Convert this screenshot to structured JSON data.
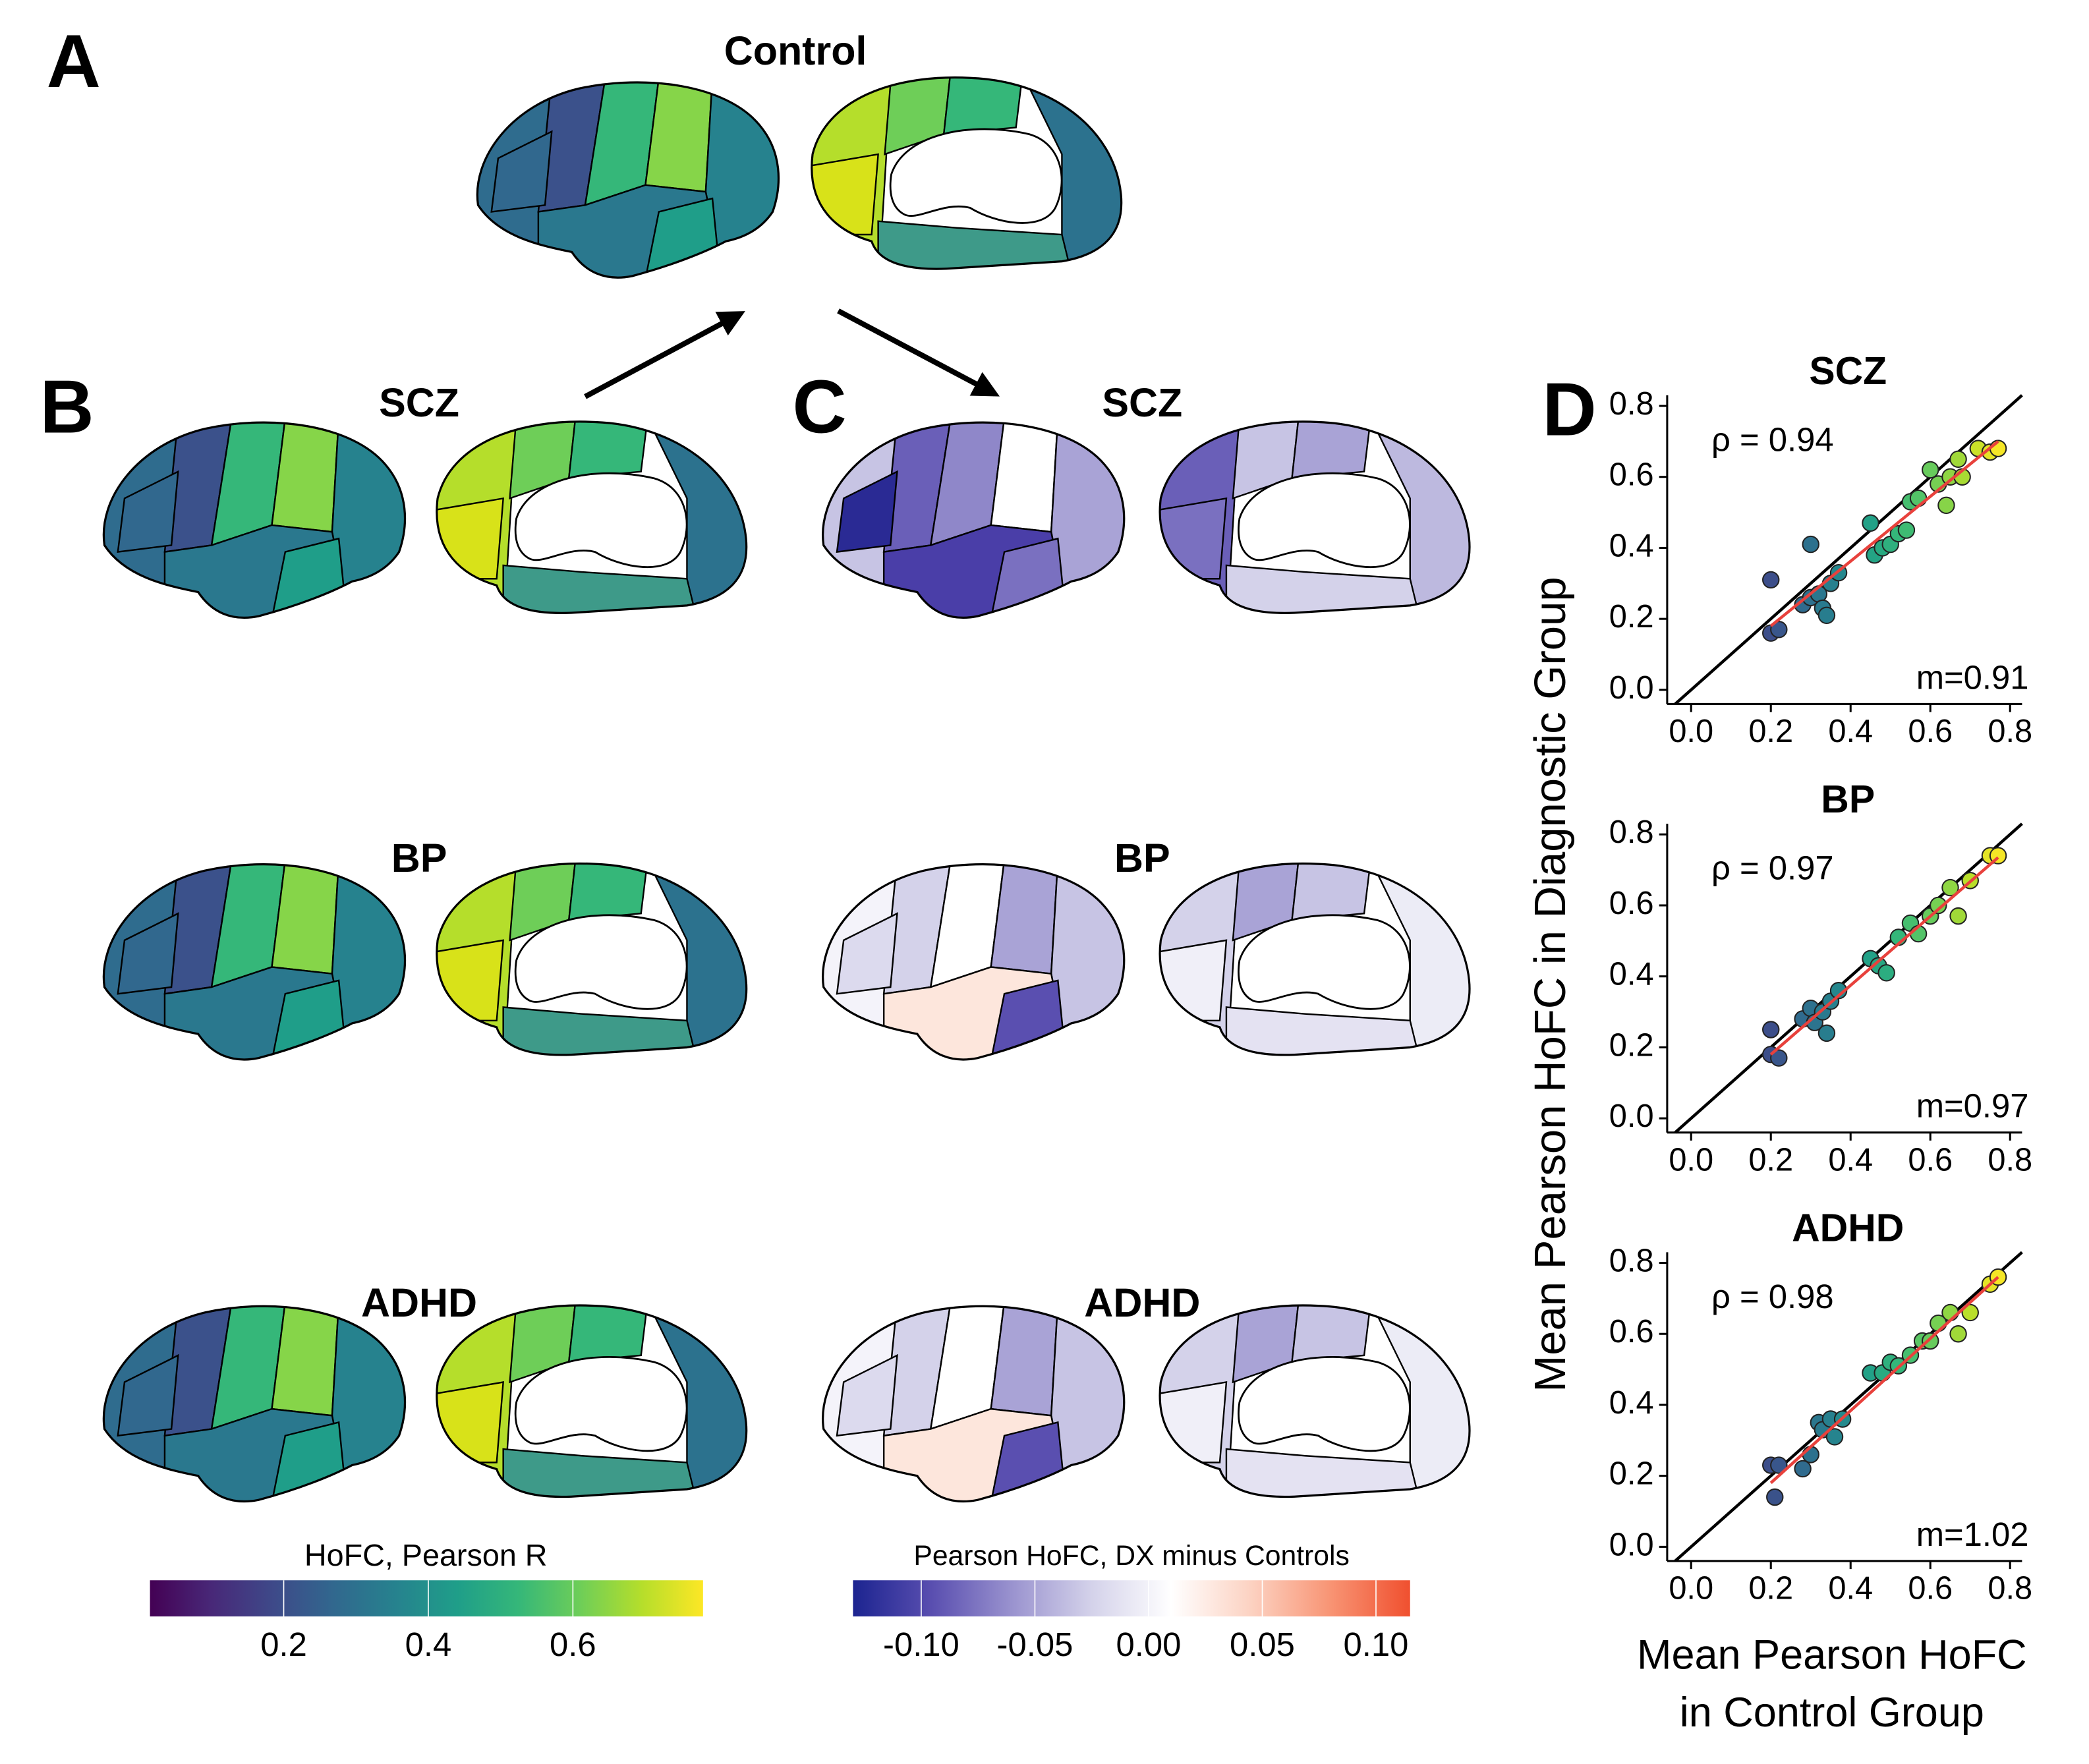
{
  "panels": [
    "A",
    "B",
    "C",
    "D"
  ],
  "brain_titles": {
    "control": "Control",
    "hofc": [
      "SCZ",
      "BP",
      "ADHD"
    ],
    "difference": [
      "SCZ",
      "BP",
      "ADHD"
    ]
  },
  "colorbars": [
    {
      "label": "HoFC, Pearson R",
      "lim": [
        0.015,
        0.78
      ],
      "ticks": [
        0.2,
        0.4,
        0.6
      ],
      "colors": [
        "#440154",
        "#482878",
        "#3e4989",
        "#31688e",
        "#26828e",
        "#1f9e89",
        "#35b779",
        "#6ece58",
        "#b5de2b",
        "#fde725"
      ]
    },
    {
      "label": "Pearson HoFC, DX minus Controls",
      "lim": [
        -0.13,
        0.115
      ],
      "ticks": [
        {
          "value": -0.1,
          "label": "-0.10"
        },
        {
          "value": -0.05,
          "label": "-0.05"
        },
        {
          "value": 0,
          "label": "0.00"
        },
        0.05,
        {
          "value": 0.1,
          "label": "0.10"
        }
      ],
      "colors": [
        "#1c2490",
        "#5a4fb0",
        "#9a93cf",
        "#d4d2ea",
        "#ffffff",
        "#fcd2c2",
        "#f89474",
        "#f0502f"
      ]
    }
  ],
  "shared_axes": {
    "y_label": "Mean Pearson HoFC in Diagnostic Group",
    "x_label": [
      "Mean Pearson HoFC",
      "in Control Group"
    ]
  },
  "chart_data": [
    {
      "type": "scatter",
      "title": "SCZ",
      "annotation": "ρ = 0.94",
      "fit_label": "m=0.91",
      "fit_color": "#e8413c",
      "x": [
        0.2,
        0.2,
        0.22,
        0.28,
        0.3,
        0.3,
        0.32,
        0.33,
        0.34,
        0.35,
        0.37,
        0.45,
        0.46,
        0.48,
        0.5,
        0.52,
        0.54,
        0.55,
        0.57,
        0.6,
        0.62,
        0.64,
        0.65,
        0.67,
        0.68,
        0.72,
        0.75,
        0.77
      ],
      "y": [
        0.31,
        0.16,
        0.17,
        0.24,
        0.41,
        0.26,
        0.27,
        0.23,
        0.21,
        0.3,
        0.33,
        0.47,
        0.38,
        0.4,
        0.41,
        0.44,
        0.45,
        0.53,
        0.54,
        0.62,
        0.58,
        0.52,
        0.6,
        0.65,
        0.6,
        0.68,
        0.67,
        0.68
      ],
      "fit": {
        "x": [
          0.2,
          0.77
        ],
        "y": [
          0.18,
          0.7
        ]
      },
      "xlim": [
        -0.06,
        0.83
      ],
      "ylim": [
        -0.04,
        0.83
      ],
      "xticks": [
        {
          "value": 0,
          "label": "0.0"
        },
        0.2,
        0.4,
        0.6,
        0.8
      ],
      "yticks": [
        {
          "value": 0,
          "label": "0.0"
        },
        0.2,
        0.4,
        0.6,
        0.8
      ]
    },
    {
      "type": "scatter",
      "title": "BP",
      "annotation": "ρ = 0.97",
      "fit_label": "m=0.97",
      "fit_color": "#e8413c",
      "x": [
        0.2,
        0.2,
        0.22,
        0.28,
        0.3,
        0.31,
        0.33,
        0.34,
        0.35,
        0.37,
        0.45,
        0.47,
        0.49,
        0.52,
        0.55,
        0.57,
        0.6,
        0.62,
        0.65,
        0.67,
        0.7,
        0.75,
        0.77
      ],
      "y": [
        0.25,
        0.18,
        0.17,
        0.28,
        0.31,
        0.27,
        0.3,
        0.24,
        0.33,
        0.36,
        0.45,
        0.43,
        0.41,
        0.51,
        0.55,
        0.52,
        0.57,
        0.6,
        0.65,
        0.57,
        0.67,
        0.74,
        0.74
      ],
      "fit": {
        "x": [
          0.2,
          0.77
        ],
        "y": [
          0.18,
          0.735
        ]
      },
      "xlim": [
        -0.06,
        0.83
      ],
      "ylim": [
        -0.04,
        0.83
      ],
      "xticks": [
        {
          "value": 0,
          "label": "0.0"
        },
        0.2,
        0.4,
        0.6,
        0.8
      ],
      "yticks": [
        {
          "value": 0,
          "label": "0.0"
        },
        0.2,
        0.4,
        0.6,
        0.8
      ]
    },
    {
      "type": "scatter",
      "title": "ADHD",
      "annotation": "ρ = 0.98",
      "fit_label": "m=1.02",
      "fit_color": "#e8413c",
      "x": [
        0.2,
        0.21,
        0.22,
        0.28,
        0.3,
        0.32,
        0.33,
        0.35,
        0.36,
        0.38,
        0.45,
        0.48,
        0.5,
        0.52,
        0.55,
        0.58,
        0.6,
        0.62,
        0.65,
        0.67,
        0.7,
        0.75,
        0.77
      ],
      "y": [
        0.23,
        0.14,
        0.23,
        0.22,
        0.26,
        0.35,
        0.33,
        0.36,
        0.31,
        0.36,
        0.49,
        0.49,
        0.52,
        0.51,
        0.54,
        0.58,
        0.58,
        0.63,
        0.66,
        0.6,
        0.66,
        0.74,
        0.76
      ],
      "fit": {
        "x": [
          0.2,
          0.77
        ],
        "y": [
          0.18,
          0.76
        ]
      },
      "xlim": [
        -0.06,
        0.83
      ],
      "ylim": [
        -0.04,
        0.83
      ],
      "xticks": [
        {
          "value": 0,
          "label": "0.0"
        },
        0.2,
        0.4,
        0.6,
        0.8
      ],
      "yticks": [
        {
          "value": 0,
          "label": "0.0"
        },
        0.2,
        0.4,
        0.6,
        0.8
      ]
    }
  ]
}
